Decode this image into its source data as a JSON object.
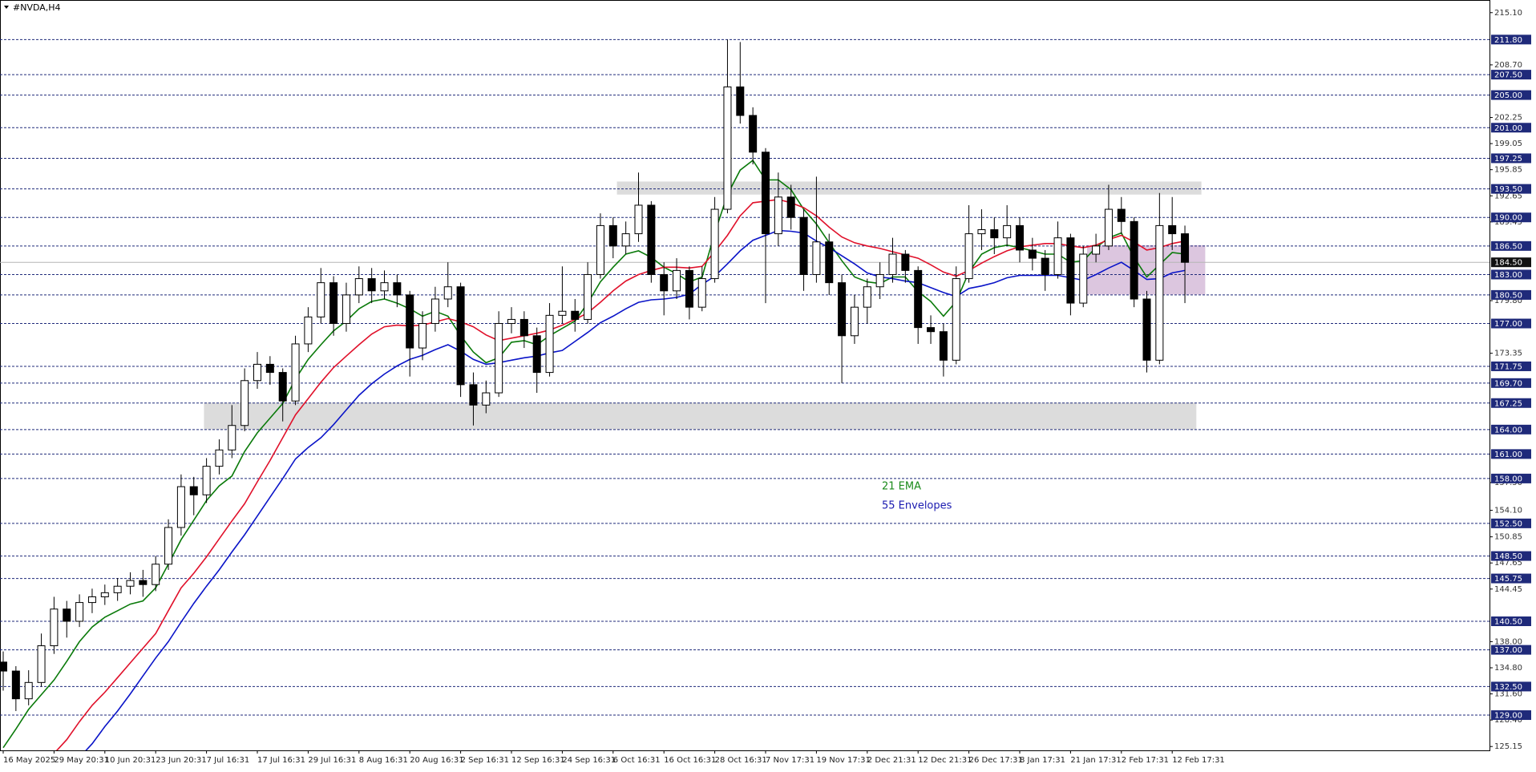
{
  "chart_data": {
    "type": "candlestick",
    "title": "#NVDA,H4",
    "ylim": [
      124.68,
      216.65
    ],
    "yticks": [
      {
        "value": 215.1,
        "label": "215.10"
      },
      {
        "value": 208.7,
        "label": "208.70"
      },
      {
        "value": 202.25,
        "label": "202.25"
      },
      {
        "value": 199.05,
        "label": "199.05"
      },
      {
        "value": 195.85,
        "label": "195.85"
      },
      {
        "value": 192.65,
        "label": "192.65"
      },
      {
        "value": 189.45,
        "label": "189.45"
      },
      {
        "value": 179.8,
        "label": "179.80"
      },
      {
        "value": 173.35,
        "label": "173.35"
      },
      {
        "value": 157.5,
        "label": "157.50"
      },
      {
        "value": 154.1,
        "label": "154.10"
      },
      {
        "value": 150.85,
        "label": "150.85"
      },
      {
        "value": 147.65,
        "label": "147.65"
      },
      {
        "value": 144.45,
        "label": "144.45"
      },
      {
        "value": 138,
        "label": "138.00"
      },
      {
        "value": 134.8,
        "label": "134.80"
      },
      {
        "value": 131.6,
        "label": "131.60"
      },
      {
        "value": 128.4,
        "label": "128.40"
      },
      {
        "value": 125.15,
        "label": "125.15"
      }
    ],
    "levels": [
      {
        "value": 211.8,
        "label": "211.80"
      },
      {
        "value": 207.5,
        "label": "207.50"
      },
      {
        "value": 205,
        "label": "205.00"
      },
      {
        "value": 201,
        "label": "201.00"
      },
      {
        "value": 197.25,
        "label": "197.25"
      },
      {
        "value": 193.5,
        "label": "193.50"
      },
      {
        "value": 190,
        "label": "190.00"
      },
      {
        "value": 186.5,
        "label": "186.50"
      },
      {
        "value": 183,
        "label": "183.00"
      },
      {
        "value": 180.5,
        "label": "180.50"
      },
      {
        "value": 177,
        "label": "177.00"
      },
      {
        "value": 171.75,
        "label": "171.75"
      },
      {
        "value": 169.7,
        "label": "169.70"
      },
      {
        "value": 167.25,
        "label": "167.25"
      },
      {
        "value": 164,
        "label": "164.00"
      },
      {
        "value": 161,
        "label": "161.00"
      },
      {
        "value": 158,
        "label": "158.00"
      },
      {
        "value": 152.5,
        "label": "152.50"
      },
      {
        "value": 148.5,
        "label": "148.50"
      },
      {
        "value": 145.75,
        "label": "145.75"
      },
      {
        "value": 140.5,
        "label": "140.50"
      },
      {
        "value": 137,
        "label": "137.00"
      },
      {
        "value": 132.5,
        "label": "132.50"
      },
      {
        "value": 129,
        "label": "129.00"
      }
    ],
    "level_color": "#1f2a7a",
    "price": {
      "value": 184.5,
      "label": "184.50"
    },
    "zones": [
      {
        "from": 194.4,
        "to": 192.8,
        "start": 48.3,
        "end": 94.3,
        "color": "#dcdcdc"
      },
      {
        "from": 167.3,
        "to": 164.0,
        "start": 15.8,
        "end": 93.9,
        "color": "#dcdcdc"
      },
      {
        "from": 186.6,
        "to": 180.55,
        "start": 85.3,
        "end": 94.6,
        "color": "#dcc6df"
      }
    ],
    "annotations": [
      {
        "text": "21 EMA",
        "color": "#1a8a1a"
      },
      {
        "text": "55 Envelopes",
        "color": "#1a1ab0"
      }
    ],
    "categories": [
      "16 May 2025",
      null,
      null,
      null,
      "29 May 20:31",
      null,
      null,
      null,
      "10 Jun 20:31",
      null,
      null,
      null,
      "23 Jun 20:31",
      null,
      null,
      null,
      "7 Jul 16:31",
      null,
      null,
      null,
      "17 Jul 16:31",
      null,
      null,
      null,
      "29 Jul 16:31",
      null,
      null,
      null,
      "8 Aug 16:31",
      null,
      null,
      null,
      "20 Aug 16:31",
      null,
      null,
      null,
      "2 Sep 16:31",
      null,
      null,
      null,
      "12 Sep 16:31",
      null,
      null,
      null,
      "24 Sep 16:31",
      null,
      null,
      null,
      "6 Oct 16:31",
      null,
      null,
      null,
      "16 Oct 16:31",
      null,
      null,
      null,
      "28 Oct 16:31",
      null,
      null,
      null,
      "7 Nov 17:31",
      null,
      null,
      null,
      "19 Nov 17:31",
      null,
      null,
      null,
      "2 Dec 21:31",
      null,
      null,
      null,
      "12 Dec 21:31",
      null,
      null,
      null,
      "26 Dec 17:31",
      null,
      null,
      null,
      "8 Jan 17:31",
      null,
      null,
      null,
      "21 Jan 17:31",
      null,
      null,
      null,
      "2 Feb 17:31",
      null,
      null,
      null,
      "12 Feb 17:31",
      null
    ],
    "ohlc": [
      [
        135.5,
        136.8,
        132.0,
        134.4
      ],
      [
        134.4,
        135.0,
        129.5,
        131.0
      ],
      [
        131.0,
        134.5,
        130.2,
        133.0
      ],
      [
        133.0,
        139.0,
        132.5,
        137.5
      ],
      [
        137.5,
        143.5,
        136.5,
        142.0
      ],
      [
        142.0,
        143.0,
        138.5,
        140.5
      ],
      [
        140.5,
        143.8,
        139.8,
        142.8
      ],
      [
        142.8,
        144.5,
        141.5,
        143.5
      ],
      [
        143.5,
        145.0,
        142.5,
        144.0
      ],
      [
        144.0,
        145.8,
        143.0,
        144.8
      ],
      [
        144.8,
        146.5,
        143.8,
        145.5
      ],
      [
        145.5,
        146.8,
        143.5,
        145.0
      ],
      [
        145.0,
        148.5,
        144.2,
        147.5
      ],
      [
        147.5,
        153.0,
        146.8,
        152.0
      ],
      [
        152.0,
        158.5,
        151.0,
        157.0
      ],
      [
        157.0,
        158.2,
        153.5,
        156.0
      ],
      [
        156.0,
        160.5,
        155.0,
        159.5
      ],
      [
        159.5,
        162.8,
        158.5,
        161.5
      ],
      [
        161.5,
        167.0,
        160.5,
        164.5
      ],
      [
        164.5,
        171.5,
        163.8,
        170.0
      ],
      [
        170.0,
        173.5,
        169.0,
        172.0
      ],
      [
        172.0,
        173.0,
        169.5,
        171.0
      ],
      [
        171.0,
        171.5,
        165.0,
        167.5
      ],
      [
        167.5,
        175.5,
        167.0,
        174.5
      ],
      [
        174.5,
        179.0,
        173.5,
        177.8
      ],
      [
        177.8,
        183.8,
        177.0,
        182.0
      ],
      [
        182.0,
        182.8,
        175.5,
        177.0
      ],
      [
        177.0,
        182.0,
        176.0,
        180.5
      ],
      [
        180.5,
        184.0,
        179.5,
        182.5
      ],
      [
        182.5,
        183.8,
        179.5,
        181.0
      ],
      [
        181.0,
        183.5,
        180.0,
        182.0
      ],
      [
        182.0,
        183.0,
        179.0,
        180.5
      ],
      [
        180.5,
        181.0,
        170.5,
        174.0
      ],
      [
        174.0,
        178.5,
        172.5,
        177.0
      ],
      [
        177.0,
        181.5,
        176.0,
        180.0
      ],
      [
        180.0,
        184.5,
        179.0,
        181.5
      ],
      [
        181.5,
        182.0,
        168.0,
        169.5
      ],
      [
        169.5,
        171.0,
        164.5,
        167.0
      ],
      [
        167.0,
        170.0,
        166.0,
        168.5
      ],
      [
        168.5,
        178.5,
        168.0,
        177.0
      ],
      [
        177.0,
        179.0,
        175.8,
        177.5
      ],
      [
        177.5,
        178.5,
        174.0,
        175.5
      ],
      [
        175.5,
        176.5,
        168.5,
        171.0
      ],
      [
        171.0,
        179.5,
        170.5,
        178.0
      ],
      [
        178.0,
        184.0,
        177.0,
        178.5
      ],
      [
        178.5,
        180.0,
        176.0,
        177.5
      ],
      [
        177.5,
        184.5,
        177.0,
        183.0
      ],
      [
        183.0,
        190.5,
        182.5,
        189.0
      ],
      [
        189.0,
        190.0,
        185.0,
        186.5
      ],
      [
        186.5,
        189.5,
        185.5,
        188.0
      ],
      [
        188.0,
        195.5,
        187.0,
        191.5
      ],
      [
        191.5,
        192.0,
        182.0,
        183.0
      ],
      [
        183.0,
        184.5,
        178.0,
        181.0
      ],
      [
        181.0,
        185.0,
        180.0,
        183.5
      ],
      [
        183.5,
        184.0,
        177.5,
        179.0
      ],
      [
        179.0,
        184.0,
        178.5,
        182.5
      ],
      [
        182.5,
        192.5,
        182.0,
        191.0
      ],
      [
        191.0,
        211.8,
        190.5,
        206.0
      ],
      [
        206.0,
        211.5,
        201.5,
        202.5
      ],
      [
        202.5,
        203.5,
        196.5,
        198.0
      ],
      [
        198.0,
        198.5,
        179.5,
        188.0
      ],
      [
        188.0,
        195.5,
        186.5,
        192.5
      ],
      [
        192.5,
        194.0,
        188.5,
        190.0
      ],
      [
        190.0,
        191.0,
        181.0,
        183.0
      ],
      [
        183.0,
        195.0,
        182.0,
        187.0
      ],
      [
        187.0,
        188.0,
        180.5,
        182.0
      ],
      [
        182.0,
        183.0,
        169.7,
        175.5
      ],
      [
        175.5,
        180.5,
        174.5,
        179.0
      ],
      [
        179.0,
        182.5,
        177.0,
        181.5
      ],
      [
        181.5,
        184.5,
        180.0,
        183.0
      ],
      [
        183.0,
        187.5,
        182.0,
        185.5
      ],
      [
        185.5,
        186.0,
        182.0,
        183.5
      ],
      [
        183.5,
        184.0,
        174.5,
        176.5
      ],
      [
        176.5,
        178.0,
        174.5,
        176.0
      ],
      [
        176.0,
        177.0,
        170.5,
        172.5
      ],
      [
        172.5,
        184.0,
        172.0,
        182.5
      ],
      [
        182.5,
        191.5,
        182.0,
        188.0
      ],
      [
        188.0,
        191.0,
        186.0,
        188.5
      ],
      [
        188.5,
        190.0,
        185.5,
        187.5
      ],
      [
        187.5,
        191.5,
        186.5,
        189.0
      ],
      [
        189.0,
        190.0,
        184.5,
        186.0
      ],
      [
        186.0,
        187.5,
        183.5,
        185.0
      ],
      [
        185.0,
        186.0,
        181.0,
        183.0
      ],
      [
        183.0,
        189.5,
        182.5,
        187.5
      ],
      [
        187.5,
        188.0,
        178.0,
        179.5
      ],
      [
        179.5,
        186.5,
        179.0,
        185.5
      ],
      [
        185.5,
        188.0,
        184.5,
        186.5
      ],
      [
        186.5,
        194.0,
        186.0,
        191.0
      ],
      [
        191.0,
        192.5,
        188.0,
        189.5
      ],
      [
        189.5,
        190.0,
        179.0,
        180.0
      ],
      [
        180.0,
        181.0,
        171.0,
        172.5
      ],
      [
        172.5,
        193.0,
        172.0,
        189.0
      ],
      [
        189.0,
        192.5,
        186.0,
        188.0
      ],
      [
        188.0,
        189.0,
        179.5,
        184.5
      ]
    ],
    "series": [
      {
        "color": "#0a7a0a",
        "values": [
          125.0,
          127.3,
          129.7,
          131.5,
          133.3,
          135.6,
          138.0,
          139.8,
          141.0,
          141.8,
          142.6,
          143.0,
          144.6,
          147.5,
          150.5,
          152.9,
          155.3,
          157.1,
          158.3,
          161.3,
          163.6,
          165.4,
          167.2,
          170.2,
          172.6,
          174.4,
          176.1,
          177.3,
          178.8,
          179.7,
          180.0,
          179.5,
          178.8,
          177.9,
          178.5,
          177.9,
          175.5,
          173.5,
          172.2,
          172.8,
          174.7,
          174.9,
          174.4,
          175.5,
          176.4,
          177.3,
          179.5,
          182.1,
          183.9,
          185.5,
          185.9,
          185.1,
          183.9,
          183.1,
          182.1,
          182.7,
          188.1,
          192.8,
          195.8,
          197.0,
          194.6,
          194.6,
          193.4,
          191.0,
          189.2,
          186.9,
          184.7,
          182.7,
          182.1,
          181.9,
          182.7,
          182.7,
          180.9,
          179.7,
          177.9,
          179.7,
          183.3,
          185.5,
          186.3,
          186.6,
          186.3,
          185.9,
          185.5,
          185.5,
          184.5,
          184.7,
          186.3,
          187.5,
          188.1,
          185.1,
          182.7,
          184.2,
          185.7,
          185.5
        ]
      },
      {
        "color": "#e0102a",
        "values": [
          null,
          null,
          null,
          122.5,
          124.3,
          126.0,
          128.2,
          130.2,
          131.8,
          133.6,
          135.4,
          137.2,
          139.0,
          141.8,
          144.6,
          146.4,
          148.4,
          150.6,
          152.8,
          154.9,
          157.6,
          160.2,
          163.0,
          165.8,
          167.8,
          169.8,
          171.6,
          173.0,
          174.4,
          175.7,
          176.6,
          176.8,
          176.7,
          176.8,
          177.2,
          177.6,
          177.2,
          176.6,
          175.6,
          174.9,
          175.2,
          175.5,
          175.8,
          176.2,
          176.8,
          177.5,
          178.3,
          179.6,
          181.0,
          182.2,
          183.0,
          183.5,
          183.9,
          183.9,
          183.8,
          184.0,
          185.8,
          187.8,
          190.2,
          191.8,
          192.0,
          192.2,
          191.8,
          191.2,
          190.2,
          188.8,
          187.6,
          186.9,
          186.5,
          186.2,
          185.8,
          185.4,
          185.0,
          184.2,
          183.3,
          182.8,
          183.5,
          184.4,
          185.2,
          185.9,
          186.4,
          186.6,
          186.8,
          186.8,
          186.5,
          186.3,
          186.6,
          187.3,
          187.8,
          187.0,
          186.0,
          186.3,
          186.8,
          187.1
        ]
      },
      {
        "color": "#0a14c8",
        "values": [
          null,
          null,
          null,
          null,
          null,
          122.2,
          123.8,
          125.5,
          127.6,
          129.5,
          131.6,
          133.8,
          136.0,
          138.0,
          140.4,
          142.7,
          144.8,
          146.8,
          149.0,
          151.1,
          153.4,
          155.7,
          158.0,
          160.4,
          161.8,
          163.0,
          164.6,
          166.4,
          168.2,
          169.6,
          170.8,
          171.8,
          172.6,
          173.1,
          173.8,
          174.4,
          173.6,
          172.6,
          172.0,
          172.2,
          172.5,
          172.8,
          173.0,
          173.4,
          173.7,
          174.8,
          175.9,
          177.1,
          177.9,
          178.8,
          179.6,
          179.9,
          180.0,
          180.2,
          180.6,
          181.8,
          182.8,
          184.3,
          185.9,
          187.2,
          187.8,
          188.4,
          188.3,
          188.1,
          187.1,
          186.3,
          185.3,
          184.3,
          183.2,
          182.7,
          182.5,
          182.2,
          182.0,
          181.4,
          180.8,
          180.3,
          181.3,
          181.6,
          182.0,
          182.6,
          182.9,
          182.9,
          182.9,
          182.9,
          182.6,
          182.3,
          183.0,
          183.8,
          184.5,
          183.5,
          182.4,
          182.5,
          183.2,
          183.5
        ]
      }
    ]
  }
}
